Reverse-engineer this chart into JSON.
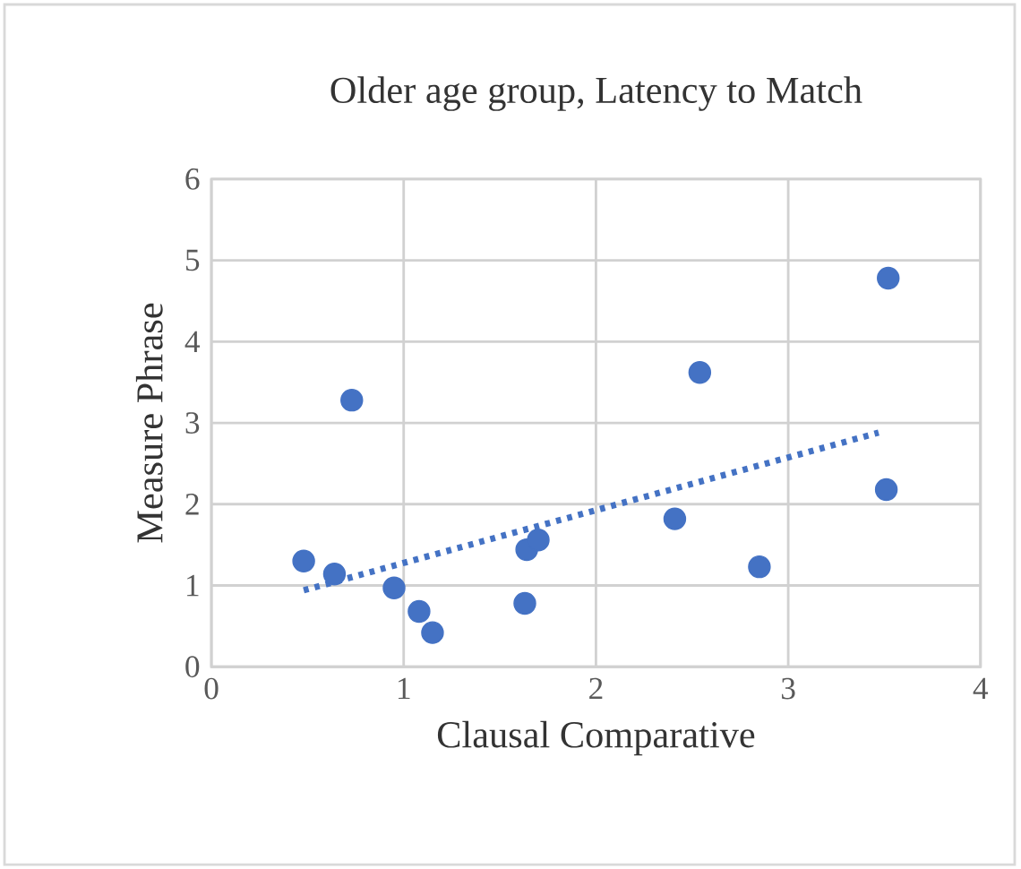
{
  "chart_data": {
    "type": "scatter",
    "title": "Older age group, Latency to Match",
    "xlabel": "Clausal Comparative",
    "ylabel": "Measure Phrase",
    "xlim": [
      0,
      4
    ],
    "xticks": [
      0,
      1,
      2,
      3,
      4
    ],
    "ylim": [
      0,
      6
    ],
    "yticks": [
      0,
      1,
      2,
      3,
      4,
      5,
      6
    ],
    "grid": true,
    "series": [
      {
        "color": "#4472c4",
        "marker": "circle",
        "x": [
          0.48,
          0.64,
          0.73,
          0.95,
          1.08,
          1.15,
          1.63,
          1.64,
          1.7,
          2.41,
          2.54,
          2.85,
          3.51,
          3.52
        ],
        "values": [
          1.3,
          1.14,
          3.28,
          0.97,
          0.68,
          0.42,
          0.78,
          1.44,
          1.56,
          1.82,
          3.62,
          1.23,
          2.18,
          4.78
        ]
      },
      {
        "type": "line",
        "color": "#4472c4",
        "line_style": "dotted",
        "marker": "none",
        "x": [
          0.48,
          3.47
        ],
        "values": [
          0.94,
          2.88
        ]
      }
    ]
  }
}
